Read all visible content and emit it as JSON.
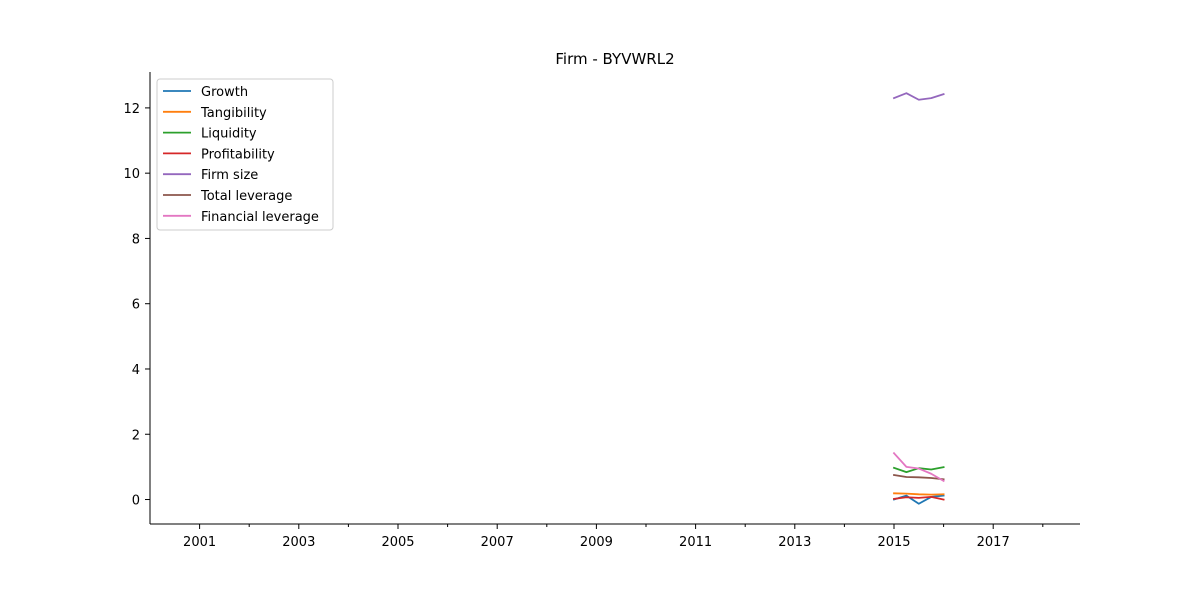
{
  "chart_data": {
    "type": "line",
    "title": "Firm - BYVWRL2",
    "xlabel": "",
    "ylabel": "",
    "xlim": [
      2000.0,
      2018.75
    ],
    "ylim": [
      -0.75,
      13.1
    ],
    "x_ticks": [
      2001,
      2003,
      2005,
      2007,
      2009,
      2011,
      2013,
      2015,
      2017
    ],
    "y_ticks": [
      0,
      2,
      4,
      6,
      8,
      10,
      12
    ],
    "legend_position": "top-left",
    "grid": false,
    "x": [
      2015.0,
      2015.25,
      2015.5,
      2015.75,
      2016.0
    ],
    "series": [
      {
        "name": "Growth",
        "color": "#1f77b4",
        "values": [
          0.0,
          0.12,
          -0.13,
          0.08,
          0.12
        ]
      },
      {
        "name": "Tangibility",
        "color": "#ff7f0e",
        "values": [
          0.19,
          0.18,
          0.16,
          0.15,
          0.16
        ]
      },
      {
        "name": "Liquidity",
        "color": "#2ca02c",
        "values": [
          0.97,
          0.84,
          0.96,
          0.92,
          0.99
        ]
      },
      {
        "name": "Profitability",
        "color": "#d62728",
        "values": [
          0.02,
          0.07,
          0.05,
          0.08,
          0.0
        ]
      },
      {
        "name": "Firm size",
        "color": "#9467bd",
        "values": [
          12.3,
          12.45,
          12.25,
          12.3,
          12.42
        ]
      },
      {
        "name": "Total leverage",
        "color": "#8c564b",
        "values": [
          0.75,
          0.69,
          0.68,
          0.66,
          0.62
        ]
      },
      {
        "name": "Financial leverage",
        "color": "#e377c2",
        "values": [
          1.42,
          1.0,
          0.95,
          0.79,
          0.57
        ]
      }
    ]
  }
}
